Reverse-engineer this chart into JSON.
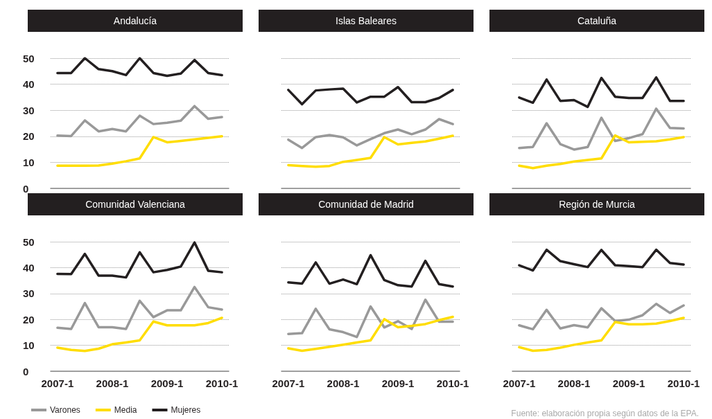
{
  "chart_data": [
    {
      "type": "line",
      "title": "Andalucía",
      "categories": [
        "2007-1",
        null,
        null,
        null,
        "2008-1",
        null,
        null,
        null,
        "2009-1",
        null,
        null,
        null,
        "2010-1"
      ],
      "ylim": [
        0,
        50
      ],
      "yticks": [
        0,
        10,
        20,
        30,
        40,
        50
      ],
      "grid": "y",
      "tick_labels": "y",
      "marker": "none",
      "series": [
        {
          "color": "#999999",
          "values": [
            20.3,
            20.1,
            26.1,
            21.9,
            22.8,
            21.9,
            27.9,
            24.7,
            25.2,
            26,
            31.6,
            26.7,
            27.4
          ]
        },
        {
          "color": "#ffdd00",
          "values": [
            8.7,
            8.7,
            8.7,
            8.8,
            9.5,
            10.4,
            11.5,
            19.7,
            17.7,
            18.2,
            18.8,
            19.4,
            20
          ]
        },
        {
          "color": "#231f20",
          "values": [
            44.3,
            44.3,
            50,
            45.8,
            45,
            43.5,
            50,
            44.3,
            43.2,
            44.1,
            49.3,
            44.3,
            43.5
          ]
        }
      ]
    },
    {
      "type": "line",
      "title": "Islas Baleares",
      "categories": [
        "2007-1",
        null,
        null,
        null,
        "2008-1",
        null,
        null,
        null,
        "2009-1",
        null,
        null,
        null,
        "2010-1"
      ],
      "ylim": [
        0,
        50
      ],
      "yticks": [
        0,
        10,
        20,
        30,
        40,
        50
      ],
      "grid": "y",
      "tick_labels": false,
      "marker": "none",
      "series": [
        {
          "color": "#999999",
          "values": [
            18.7,
            15.5,
            19.7,
            20.5,
            19.6,
            16.5,
            18.9,
            21.2,
            22.6,
            20.8,
            22.6,
            26.6,
            24.7
          ]
        },
        {
          "color": "#ffdd00",
          "values": [
            8.9,
            8.6,
            8.3,
            8.6,
            10.2,
            10.9,
            11.7,
            19.7,
            16.9,
            17.5,
            18,
            19.1,
            20.2
          ]
        },
        {
          "color": "#231f20",
          "values": [
            37.8,
            32.3,
            37.6,
            38,
            38.3,
            33,
            35.2,
            35.2,
            38.9,
            33.1,
            33.1,
            34.7,
            37.8
          ]
        }
      ]
    },
    {
      "type": "line",
      "title": "Cataluña",
      "categories": [
        "2007-1",
        null,
        null,
        null,
        "2008-1",
        null,
        null,
        null,
        "2009-1",
        null,
        null,
        null,
        "2010-1"
      ],
      "ylim": [
        0,
        50
      ],
      "yticks": [
        0,
        10,
        20,
        30,
        40,
        50
      ],
      "grid": "y",
      "tick_labels": false,
      "marker": "none",
      "series": [
        {
          "color": "#999999",
          "values": [
            15.5,
            15.9,
            25,
            17,
            14.9,
            15.9,
            27.1,
            18.2,
            19.3,
            20.8,
            30.6,
            23.2,
            23
          ]
        },
        {
          "color": "#ffdd00",
          "values": [
            8.7,
            7.8,
            8.7,
            9.4,
            10.3,
            10.9,
            11.5,
            20.3,
            17.7,
            17.9,
            18.1,
            18.8,
            19.7
          ]
        },
        {
          "color": "#231f20",
          "values": [
            34.9,
            32.9,
            41.8,
            33.6,
            33.9,
            31.3,
            42.4,
            35.2,
            34.7,
            34.7,
            42.6,
            33.6,
            33.6
          ]
        }
      ]
    },
    {
      "type": "line",
      "title": "Comunidad Valenciana",
      "categories": [
        "2007-1",
        null,
        null,
        null,
        "2008-1",
        null,
        null,
        null,
        "2009-1",
        null,
        null,
        null,
        "2010-1"
      ],
      "ylim": [
        0,
        50
      ],
      "yticks": [
        0,
        10,
        20,
        30,
        40,
        50
      ],
      "grid": "y",
      "marker": "none",
      "legend": "bottom left",
      "series": [
        {
          "name": "Varones",
          "color": "#999999",
          "values": [
            16.8,
            16.3,
            26.3,
            17,
            17,
            16.3,
            27.2,
            20.9,
            23.5,
            23.5,
            32.5,
            24.7,
            23.8
          ]
        },
        {
          "name": "Media",
          "color": "#ffdd00",
          "values": [
            9.1,
            8.2,
            7.8,
            8.7,
            10.4,
            11.1,
            11.9,
            19.2,
            17.7,
            17.7,
            17.7,
            18.6,
            20.6
          ]
        },
        {
          "name": "Mujeres",
          "color": "#231f20",
          "values": [
            37.6,
            37.5,
            45.3,
            36.9,
            36.9,
            36.2,
            45.9,
            38.2,
            39.1,
            40.4,
            49.7,
            38.8,
            38.2
          ]
        }
      ]
    },
    {
      "type": "line",
      "title": "Comunidad de Madrid",
      "categories": [
        "2007-1",
        null,
        null,
        null,
        "2008-1",
        null,
        null,
        null,
        "2009-1",
        null,
        null,
        null,
        "2010-1"
      ],
      "ylim": [
        0,
        50
      ],
      "yticks": [
        0,
        10,
        20,
        30,
        40,
        50
      ],
      "grid": "y",
      "tick_labels": "x",
      "marker": "none",
      "series": [
        {
          "color": "#999999",
          "values": [
            14.4,
            14.7,
            24.1,
            16.2,
            15.1,
            13.2,
            25,
            16.9,
            19.3,
            16.3,
            27.6,
            19.1,
            19.1
          ]
        },
        {
          "color": "#ffdd00",
          "values": [
            8.8,
            7.9,
            8.6,
            9.4,
            10.2,
            11.1,
            11.9,
            20.1,
            17,
            17.5,
            18.2,
            19.7,
            21
          ]
        },
        {
          "color": "#231f20",
          "values": [
            34.3,
            33.8,
            42,
            33.8,
            35.4,
            33.6,
            44.8,
            35.2,
            33.2,
            32.7,
            42.6,
            33.6,
            32.7
          ]
        }
      ]
    },
    {
      "type": "line",
      "title": "Región de Murcia",
      "categories": [
        "2007-1",
        null,
        null,
        null,
        "2008-1",
        null,
        null,
        null,
        "2009-1",
        null,
        null,
        null,
        "2010-1"
      ],
      "ylim": [
        0,
        50
      ],
      "yticks": [
        0,
        10,
        20,
        30,
        40,
        50
      ],
      "grid": "y",
      "tick_labels": "x",
      "marker": "none",
      "annotations": [
        "Fuente: elaboración propia según datos de la EPA."
      ],
      "series": [
        {
          "color": "#999999",
          "values": [
            17.7,
            16.2,
            23.7,
            16.5,
            17.8,
            16.9,
            24.3,
            19.4,
            19.9,
            21.6,
            26,
            22.5,
            25.4
          ]
        },
        {
          "color": "#ffdd00",
          "values": [
            9.3,
            7.9,
            8.2,
            9.1,
            10.2,
            11.1,
            11.9,
            19,
            18.1,
            18.1,
            18.4,
            19.4,
            20.6
          ]
        },
        {
          "color": "#231f20",
          "values": [
            40.9,
            38.9,
            46.9,
            42.5,
            41.3,
            40.2,
            46.8,
            40.9,
            40.6,
            40.2,
            46.9,
            41.8,
            41.2
          ]
        }
      ]
    }
  ]
}
